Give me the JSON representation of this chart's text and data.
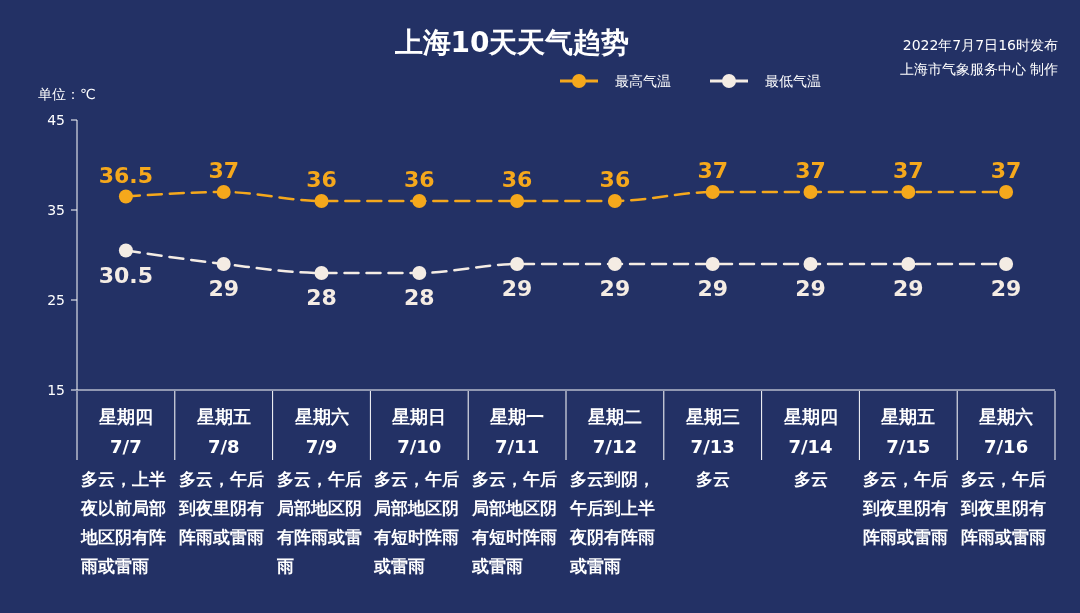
{
  "chart_data": {
    "type": "line",
    "title": "上海10天天气趋势",
    "ylabel": "单位：℃",
    "categories": [
      "星期四 7/7",
      "星期五 7/8",
      "星期六 7/9",
      "星期日 7/10",
      "星期一 7/11",
      "星期二 7/12",
      "星期三 7/13",
      "星期四 7/14",
      "星期五 7/15",
      "星期六 7/16"
    ],
    "series": [
      {
        "name": "最高气温",
        "color": "#f5a81c",
        "values": [
          36.5,
          37,
          36,
          36,
          36,
          36,
          37,
          37,
          37,
          37
        ]
      },
      {
        "name": "最低气温",
        "color": "#f4ece4",
        "values": [
          30.5,
          29,
          28,
          28,
          29,
          29,
          29,
          29,
          29,
          29
        ]
      }
    ],
    "ylim": [
      15,
      45
    ],
    "yticks": [
      15,
      25,
      35,
      45
    ],
    "grid": false,
    "legend": "top right",
    "marker": "circle",
    "line_style": "dashed",
    "data_labels": true,
    "annotations": [
      "2022年7月7日16时发布",
      "上海市气象服务中心 制作",
      "多云，上半夜以前局部地区阴有阵雨或雷雨",
      "多云，午后到夜里阴有阵雨或雷雨",
      "多云，午后局部地区阴有阵雨或雷雨",
      "多云，午后局部地区阴有短时阵雨或雷雨",
      "多云，午后局部地区阴有短时阵雨或雷雨",
      "多云到阴，午后到上半夜阴有阵雨或雷雨",
      "多云",
      "多云",
      "多云，午后到夜里阴有阵雨或雷雨",
      "多云，午后到夜里阴有阵雨或雷雨"
    ]
  }
}
